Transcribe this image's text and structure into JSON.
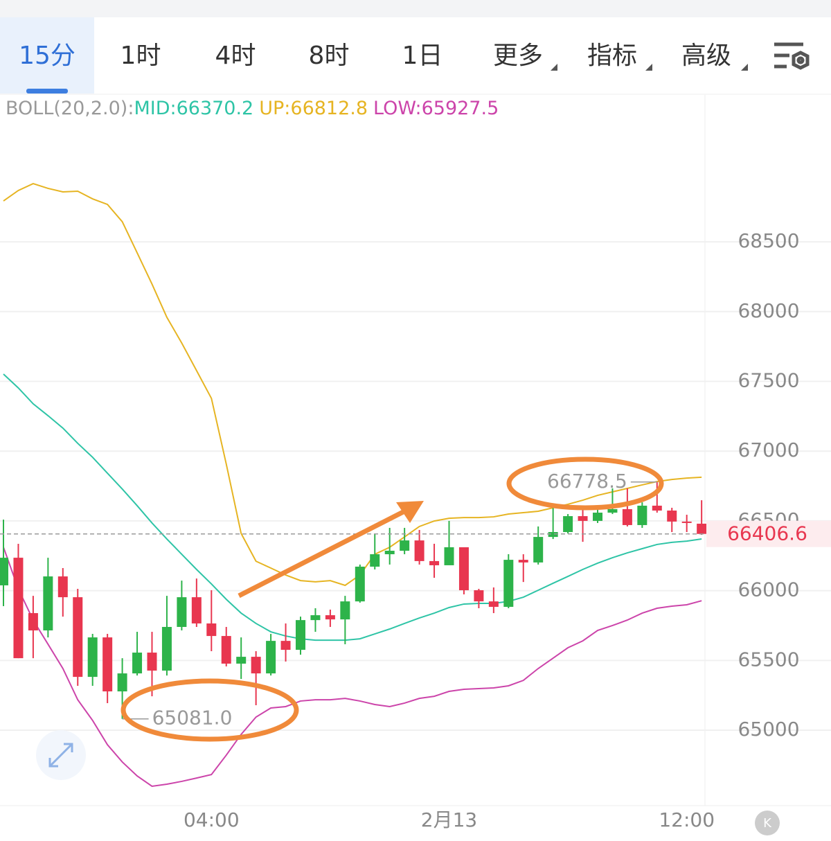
{
  "tabs": [
    "15分",
    "1时",
    "4时",
    "8时",
    "1日",
    "更多",
    "指标",
    "高级"
  ],
  "legend": {
    "title": "BOLL(20,2.0):",
    "items": [
      "MID:66370.2",
      "UP:66812.8",
      "LOW:65927.5"
    ]
  },
  "chart_data": {
    "type": "candlestick",
    "categories": [
      null,
      null,
      null,
      null,
      null,
      null,
      null,
      null,
      null,
      null,
      null,
      null,
      null,
      null,
      "04:00",
      null,
      null,
      null,
      null,
      null,
      null,
      null,
      null,
      null,
      null,
      null,
      null,
      null,
      null,
      null,
      "2月13",
      null,
      null,
      null,
      null,
      null,
      null,
      null,
      null,
      null,
      null,
      null,
      null,
      null,
      null,
      null,
      "12:00",
      null
    ],
    "open": [
      66038,
      66236,
      65839,
      65715,
      66102,
      65953,
      65382,
      65665,
      65278,
      65407,
      65556,
      65427,
      65740,
      65953,
      65765,
      65675,
      65477,
      65526,
      65407,
      65640,
      65576,
      65789,
      65824,
      65794,
      65923,
      66172,
      66261,
      66286,
      66360,
      66212,
      66182,
      66311,
      66003,
      65923,
      65884,
      66221,
      66202,
      66385,
      66420,
      66534,
      66500,
      66559,
      66584,
      66470,
      66609,
      66574,
      66495,
      66480
    ],
    "high": [
      66509,
      66336,
      65963,
      66236,
      66162,
      66013,
      65690,
      65690,
      65516,
      65705,
      65705,
      65963,
      66072,
      66087,
      66003,
      65740,
      65665,
      65566,
      65690,
      65765,
      65814,
      65874,
      65864,
      65963,
      66187,
      66410,
      66450,
      66450,
      66435,
      66336,
      66500,
      66311,
      66013,
      66023,
      66261,
      66261,
      66460,
      66609,
      66549,
      66584,
      66584,
      66733,
      66733,
      66633,
      66778.5,
      66594,
      66544,
      66648
    ],
    "low": [
      65889,
      65516,
      65516,
      65665,
      65814,
      65318,
      65318,
      65194,
      65081,
      65392,
      65243,
      65392,
      65715,
      65740,
      65566,
      65457,
      65367,
      65179,
      65392,
      65492,
      65541,
      65705,
      65740,
      65616,
      65914,
      66152,
      66187,
      66261,
      66187,
      66092,
      66187,
      65973,
      65874,
      65839,
      65874,
      66062,
      66187,
      66370,
      66410,
      66350,
      66485,
      66549,
      66460,
      66450,
      66559,
      66420,
      66420,
      66400
    ],
    "close": [
      66236,
      65516,
      65715,
      66102,
      65953,
      65382,
      65665,
      65278,
      65407,
      65556,
      65427,
      65740,
      65953,
      65765,
      65675,
      65477,
      65526,
      65407,
      65640,
      65576,
      65789,
      65824,
      65794,
      65923,
      66172,
      66261,
      66286,
      66360,
      66212,
      66182,
      66311,
      66003,
      65923,
      65884,
      66221,
      66202,
      66385,
      66420,
      66534,
      66500,
      66559,
      66584,
      66470,
      66609,
      66574,
      66495,
      66485,
      66406.6
    ],
    "up_color": "#2db34a",
    "down_color": "#e8364f",
    "series": [
      {
        "color": "#2ec4a6",
        "values": [
          67552,
          67453,
          67339,
          67254,
          67165,
          67056,
          66956,
          66842,
          66728,
          66609,
          66485,
          66370,
          66261,
          66152,
          66048,
          65938,
          65839,
          65765,
          65705,
          65675,
          65655,
          65645,
          65645,
          65645,
          65655,
          65690,
          65725,
          65765,
          65804,
          65839,
          65879,
          65904,
          65909,
          65909,
          65923,
          65953,
          66003,
          66053,
          66102,
          66152,
          66197,
          66236,
          66271,
          66301,
          66331,
          66346,
          66355,
          66370.2
        ]
      },
      {
        "color": "#e6b422",
        "values": [
          68793,
          68868,
          68917,
          68883,
          68858,
          68863,
          68808,
          68768,
          68644,
          68421,
          68197,
          67959,
          67775,
          67577,
          67378,
          66907,
          66410,
          66211,
          66162,
          66112,
          66072,
          66063,
          66072,
          66038,
          66112,
          66261,
          66311,
          66385,
          66460,
          66499,
          66519,
          66524,
          66524,
          66529,
          66549,
          66559,
          66569,
          66594,
          66619,
          66648,
          66683,
          66708,
          66733,
          66758,
          66782,
          66797,
          66807,
          66812.8
        ]
      },
      {
        "color": "#cc44aa",
        "values": [
          66311,
          66013,
          65789,
          65616,
          65442,
          65218,
          65070,
          64896,
          64772,
          64672,
          64598,
          64613,
          64633,
          64657,
          64682,
          64821,
          64970,
          65094,
          65159,
          65169,
          65209,
          65218,
          65218,
          65228,
          65209,
          65184,
          65169,
          65194,
          65228,
          65243,
          65278,
          65293,
          65298,
          65303,
          65318,
          65357,
          65442,
          65516,
          65591,
          65640,
          65715,
          65750,
          65789,
          65839,
          65874,
          65889,
          65899,
          65927.5
        ]
      }
    ],
    "ylim": [
      64459,
      69538
    ],
    "yticks": [
      65000,
      65500,
      66000,
      66500,
      67000,
      67500,
      68000,
      68500
    ],
    "grid": true,
    "last_price": 66406.6,
    "annotations": [
      {
        "value": 65081,
        "label": "65081.0"
      },
      {
        "value": 66778.5,
        "label": "66778.5"
      }
    ]
  }
}
